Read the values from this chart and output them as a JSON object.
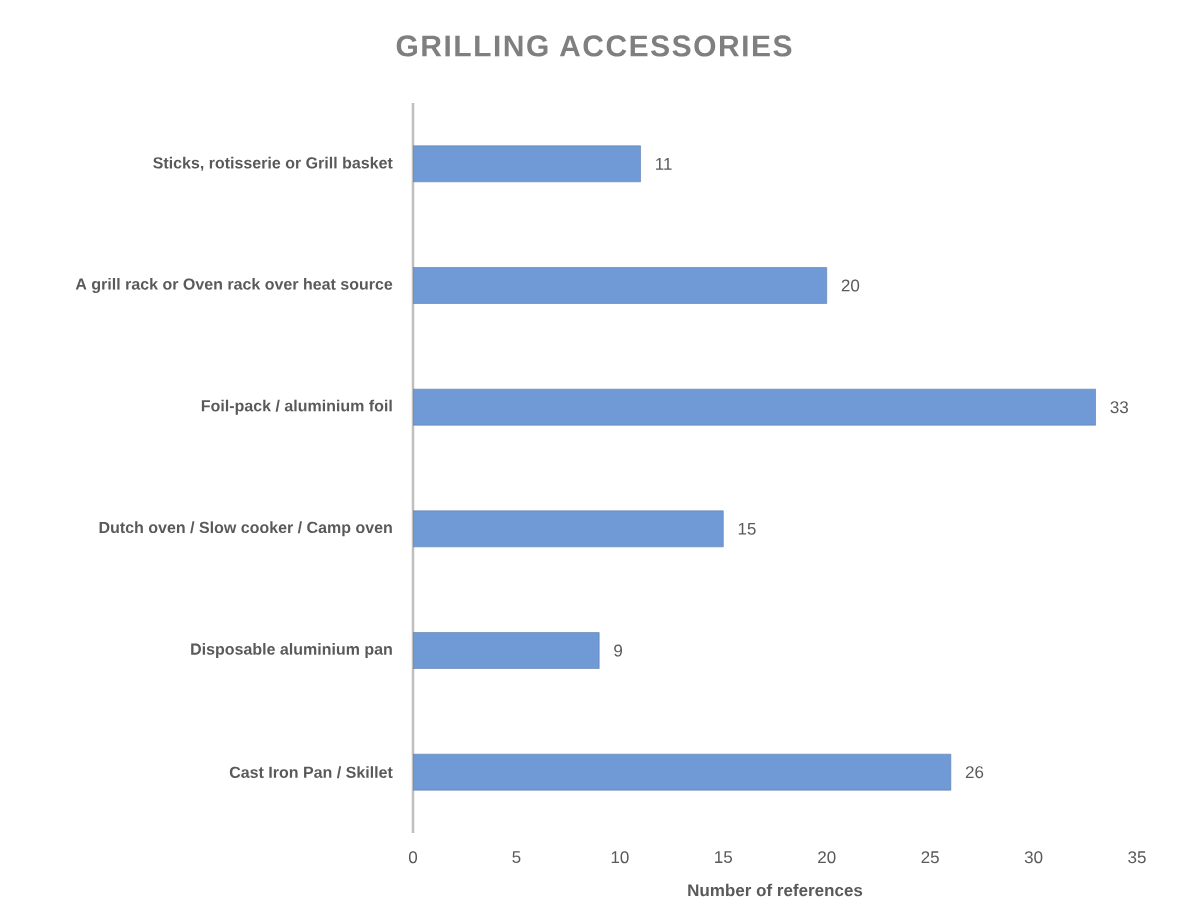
{
  "chart_data": {
    "type": "bar",
    "orientation": "horizontal",
    "title": "GRILLING ACCESSORIES",
    "xlabel": "Number of references",
    "categories": [
      "Sticks, rotisserie or Grill basket",
      "A grill rack or Oven rack over heat source",
      "Foil-pack / aluminium foil",
      "Dutch oven / Slow cooker / Camp oven",
      "Disposable aluminium pan",
      "Cast Iron Pan / Skillet"
    ],
    "values": [
      11,
      20,
      33,
      15,
      9,
      26
    ],
    "color": "#6f9ad6",
    "xlim": [
      0,
      35
    ],
    "xticks": [
      0,
      5,
      10,
      15,
      20,
      25,
      30,
      35
    ],
    "data_labels": true
  }
}
